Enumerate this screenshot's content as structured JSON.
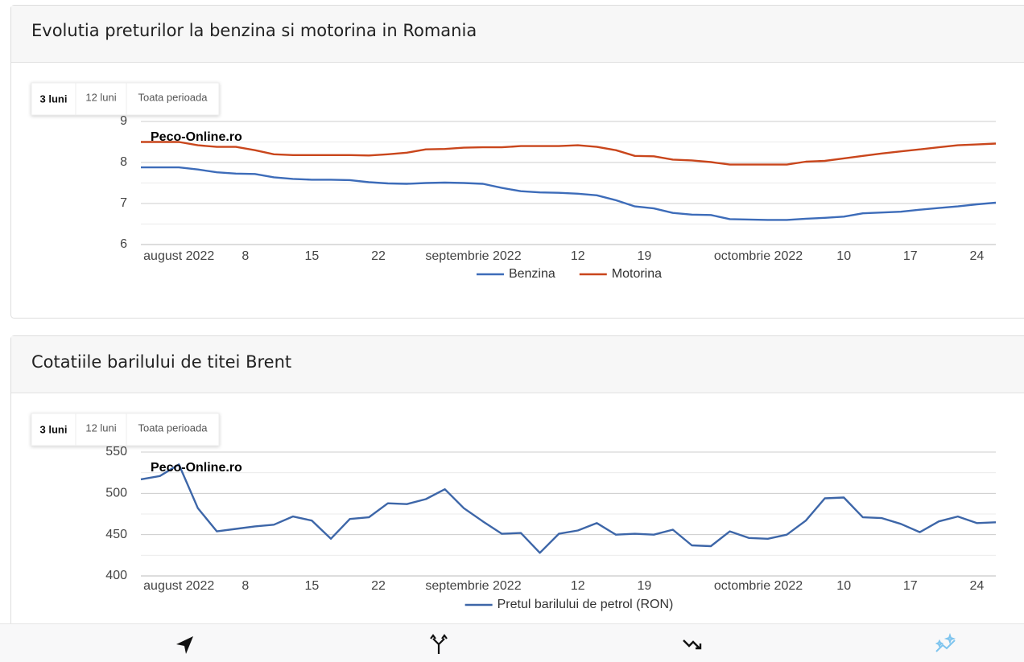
{
  "chart_data": [
    {
      "type": "line",
      "title": "Evolutia preturilor la benzina si motorina in Romania",
      "range_buttons": [
        "3 luni",
        "12 luni",
        "Toata perioada"
      ],
      "active_button": 0,
      "watermark": "Peco-Online.ro",
      "x": [
        "2022-07-28",
        "2022-07-30",
        "2022-08-01",
        "2022-08-03",
        "2022-08-05",
        "2022-08-07",
        "2022-08-09",
        "2022-08-11",
        "2022-08-13",
        "2022-08-15",
        "2022-08-17",
        "2022-08-19",
        "2022-08-21",
        "2022-08-23",
        "2022-08-25",
        "2022-08-27",
        "2022-08-29",
        "2022-08-31",
        "2022-09-02",
        "2022-09-04",
        "2022-09-06",
        "2022-09-08",
        "2022-09-10",
        "2022-09-12",
        "2022-09-14",
        "2022-09-16",
        "2022-09-18",
        "2022-09-20",
        "2022-09-22",
        "2022-09-24",
        "2022-09-26",
        "2022-09-28",
        "2022-09-30",
        "2022-10-02",
        "2022-10-04",
        "2022-10-06",
        "2022-10-08",
        "2022-10-10",
        "2022-10-12",
        "2022-10-14",
        "2022-10-16",
        "2022-10-18",
        "2022-10-20",
        "2022-10-22",
        "2022-10-24",
        "2022-10-26"
      ],
      "xlim": [
        "2022-07-28",
        "2022-10-26"
      ],
      "xticks": [
        {
          "value": "2022-08-01",
          "label": "august 2022"
        },
        {
          "value": "2022-08-08",
          "label": "8"
        },
        {
          "value": "2022-08-15",
          "label": "15"
        },
        {
          "value": "2022-08-22",
          "label": "22"
        },
        {
          "value": "2022-09-01",
          "label": "septembrie 2022"
        },
        {
          "value": "2022-09-12",
          "label": "12"
        },
        {
          "value": "2022-09-19",
          "label": "19"
        },
        {
          "value": "2022-10-01",
          "label": "octombrie 2022"
        },
        {
          "value": "2022-10-10",
          "label": "10"
        },
        {
          "value": "2022-10-17",
          "label": "17"
        },
        {
          "value": "2022-10-24",
          "label": "24"
        }
      ],
      "ylim": [
        6,
        9
      ],
      "yticks": [
        6,
        7,
        8,
        9
      ],
      "yminorticks": [
        6.5,
        7.5,
        8.5
      ],
      "grid": true,
      "series": [
        {
          "name": "Benzina",
          "color": "#3d6cb9",
          "values": [
            7.88,
            7.88,
            7.88,
            7.83,
            7.76,
            7.73,
            7.72,
            7.64,
            7.6,
            7.58,
            7.58,
            7.57,
            7.52,
            7.49,
            7.48,
            7.5,
            7.51,
            7.5,
            7.48,
            7.38,
            7.3,
            7.27,
            7.26,
            7.24,
            7.2,
            7.08,
            6.93,
            6.88,
            6.77,
            6.73,
            6.72,
            6.62,
            6.61,
            6.6,
            6.6,
            6.63,
            6.65,
            6.68,
            6.76,
            6.78,
            6.8,
            6.85,
            6.89,
            6.93,
            6.98,
            7.02
          ]
        },
        {
          "name": "Motorina",
          "color": "#c9461c",
          "values": [
            8.5,
            8.5,
            8.5,
            8.42,
            8.38,
            8.38,
            8.3,
            8.2,
            8.18,
            8.18,
            8.18,
            8.18,
            8.17,
            8.2,
            8.24,
            8.32,
            8.33,
            8.36,
            8.37,
            8.37,
            8.4,
            8.4,
            8.4,
            8.42,
            8.38,
            8.3,
            8.16,
            8.15,
            8.07,
            8.05,
            8.01,
            7.95,
            7.95,
            7.95,
            7.95,
            8.02,
            8.04,
            8.1,
            8.16,
            8.22,
            8.27,
            8.32,
            8.37,
            8.42,
            8.44,
            8.46
          ]
        }
      ]
    },
    {
      "type": "line",
      "title": "Cotatiile barilului de titei Brent",
      "range_buttons": [
        "3 luni",
        "12 luni",
        "Toata perioada"
      ],
      "active_button": 0,
      "watermark": "Peco-Online.ro",
      "x": [
        "2022-07-28",
        "2022-07-30",
        "2022-08-01",
        "2022-08-03",
        "2022-08-05",
        "2022-08-07",
        "2022-08-09",
        "2022-08-11",
        "2022-08-13",
        "2022-08-15",
        "2022-08-17",
        "2022-08-19",
        "2022-08-21",
        "2022-08-23",
        "2022-08-25",
        "2022-08-27",
        "2022-08-29",
        "2022-08-31",
        "2022-09-02",
        "2022-09-04",
        "2022-09-06",
        "2022-09-08",
        "2022-09-10",
        "2022-09-12",
        "2022-09-14",
        "2022-09-16",
        "2022-09-18",
        "2022-09-20",
        "2022-09-22",
        "2022-09-24",
        "2022-09-26",
        "2022-09-28",
        "2022-09-30",
        "2022-10-02",
        "2022-10-04",
        "2022-10-06",
        "2022-10-08",
        "2022-10-10",
        "2022-10-12",
        "2022-10-14",
        "2022-10-16",
        "2022-10-18",
        "2022-10-20",
        "2022-10-22",
        "2022-10-24",
        "2022-10-26"
      ],
      "xlim": [
        "2022-07-28",
        "2022-10-26"
      ],
      "xticks": [
        {
          "value": "2022-08-01",
          "label": "august 2022"
        },
        {
          "value": "2022-08-08",
          "label": "8"
        },
        {
          "value": "2022-08-15",
          "label": "15"
        },
        {
          "value": "2022-08-22",
          "label": "22"
        },
        {
          "value": "2022-09-01",
          "label": "septembrie 2022"
        },
        {
          "value": "2022-09-12",
          "label": "12"
        },
        {
          "value": "2022-09-19",
          "label": "19"
        },
        {
          "value": "2022-10-01",
          "label": "octombrie 2022"
        },
        {
          "value": "2022-10-10",
          "label": "10"
        },
        {
          "value": "2022-10-17",
          "label": "17"
        },
        {
          "value": "2022-10-24",
          "label": "24"
        }
      ],
      "ylim": [
        400,
        550
      ],
      "yticks": [
        400,
        450,
        500,
        550
      ],
      "yminorticks": [
        425,
        475,
        525
      ],
      "grid": true,
      "series": [
        {
          "name": "Pretul barilului de petrol (RON)",
          "color": "#3d66a8",
          "values": [
            517,
            521,
            535,
            482,
            454,
            457,
            460,
            462,
            472,
            467,
            445,
            469,
            471,
            488,
            487,
            493,
            505,
            482,
            466,
            451,
            452,
            428,
            451,
            455,
            464,
            450,
            451,
            450,
            456,
            437,
            436,
            454,
            446,
            445,
            450,
            467,
            494,
            495,
            471,
            470,
            463,
            453,
            466,
            472,
            464,
            465
          ]
        }
      ]
    }
  ]
}
